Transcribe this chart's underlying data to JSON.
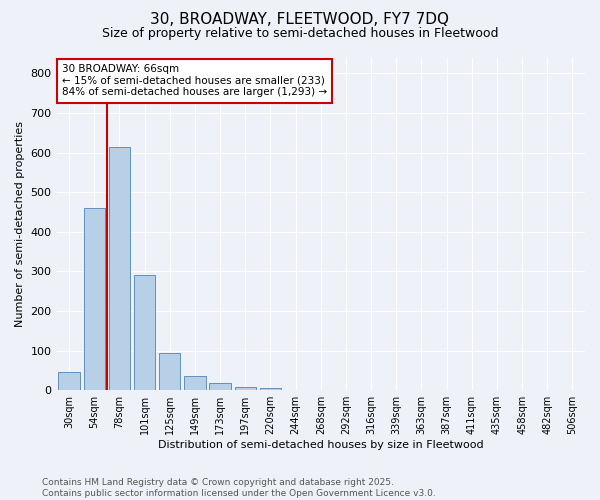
{
  "title1": "30, BROADWAY, FLEETWOOD, FY7 7DQ",
  "title2": "Size of property relative to semi-detached houses in Fleetwood",
  "xlabel": "Distribution of semi-detached houses by size in Fleetwood",
  "ylabel": "Number of semi-detached properties",
  "categories": [
    "30sqm",
    "54sqm",
    "78sqm",
    "101sqm",
    "125sqm",
    "149sqm",
    "173sqm",
    "197sqm",
    "220sqm",
    "244sqm",
    "268sqm",
    "292sqm",
    "316sqm",
    "339sqm",
    "363sqm",
    "387sqm",
    "411sqm",
    "435sqm",
    "458sqm",
    "482sqm",
    "506sqm"
  ],
  "values": [
    45,
    460,
    615,
    290,
    93,
    35,
    17,
    8,
    5,
    0,
    0,
    0,
    0,
    0,
    0,
    0,
    0,
    0,
    0,
    0,
    0
  ],
  "bar_color": "#b8cfe8",
  "bar_edge_color": "#6090c0",
  "vline_color": "#cc0000",
  "vline_x": 1.5,
  "annotation_text": "30 BROADWAY: 66sqm\n← 15% of semi-detached houses are smaller (233)\n84% of semi-detached houses are larger (1,293) →",
  "annotation_box_facecolor": "#ffffff",
  "annotation_box_edgecolor": "#cc0000",
  "ylim": [
    0,
    840
  ],
  "yticks": [
    0,
    100,
    200,
    300,
    400,
    500,
    600,
    700,
    800
  ],
  "bg_color": "#eef2f8",
  "plot_bg_color": "#eef2f8",
  "grid_color": "#ffffff",
  "title1_fontsize": 11,
  "title2_fontsize": 9,
  "axis_label_fontsize": 8,
  "tick_fontsize": 7,
  "footer_fontsize": 6.5,
  "footer_line1": "Contains HM Land Registry data © Crown copyright and database right 2025.",
  "footer_line2": "Contains public sector information licensed under the Open Government Licence v3.0."
}
